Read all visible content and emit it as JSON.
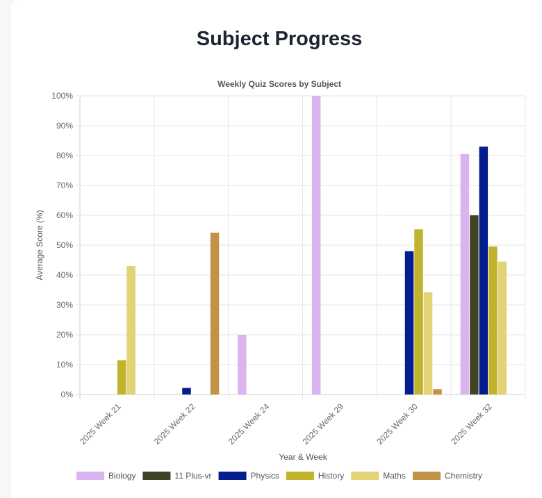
{
  "page": {
    "title": "Subject Progress"
  },
  "chart_data": {
    "type": "bar",
    "title": "Weekly Quiz Scores by Subject",
    "xlabel": "Year & Week",
    "ylabel": "Average Score (%)",
    "ylim": [
      0,
      100
    ],
    "yticks": [
      0,
      10,
      20,
      30,
      40,
      50,
      60,
      70,
      80,
      90,
      100
    ],
    "ytick_suffix": "%",
    "grid": true,
    "legend_position": "bottom",
    "categories": [
      "2025 Week 21",
      "2025 Week 22",
      "2025 Week 24",
      "2025 Week 29",
      "2025 Week 30",
      "2025 Week 32"
    ],
    "series": [
      {
        "name": "Biology",
        "color": "#dab4ef",
        "values": [
          null,
          null,
          20,
          100,
          null,
          80.5
        ]
      },
      {
        "name": "11 Plus-vr",
        "color": "#3e4425",
        "values": [
          null,
          null,
          null,
          null,
          null,
          60
        ]
      },
      {
        "name": "Physics",
        "color": "#041e8f",
        "values": [
          null,
          2.2,
          null,
          null,
          48,
          83
        ]
      },
      {
        "name": "History",
        "color": "#c1b32e",
        "values": [
          11.5,
          null,
          null,
          null,
          55.3,
          49.6
        ]
      },
      {
        "name": "Maths",
        "color": "#e2d377",
        "values": [
          43,
          null,
          null,
          null,
          34.2,
          44.5
        ]
      },
      {
        "name": "Chemistry",
        "color": "#c29346",
        "values": [
          null,
          54.2,
          null,
          null,
          1.8,
          null
        ]
      }
    ]
  }
}
